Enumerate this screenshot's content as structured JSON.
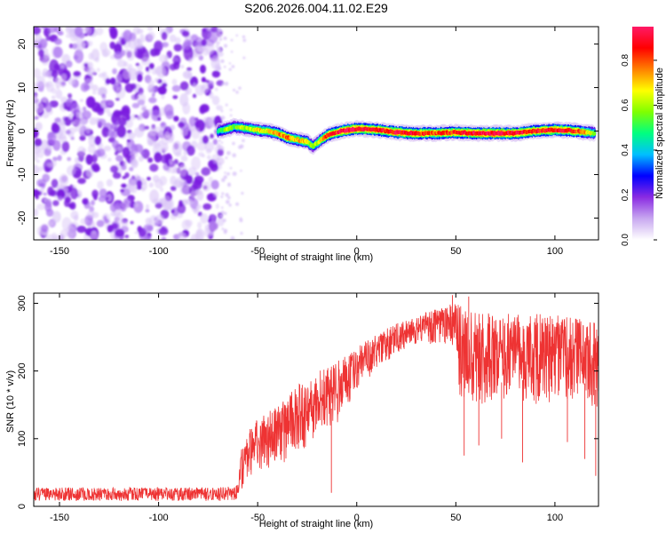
{
  "title": "S206.2026.004.11.02.E29",
  "chart_data": [
    {
      "type": "heatmap",
      "xlabel": "Height of straight line (km)",
      "ylabel": "Frequency (Hz)",
      "xlim": [
        -163,
        122
      ],
      "ylim": [
        -25,
        24
      ],
      "xticks": [
        -150,
        -100,
        -50,
        0,
        50,
        100
      ],
      "yticks": [
        -20,
        -10,
        0,
        10,
        20
      ],
      "noise_region_x": [
        -163,
        -70
      ],
      "signal_track": {
        "x": [
          -70,
          -65,
          -62,
          -58,
          -54,
          -50,
          -45,
          -40,
          -35,
          -30,
          -25,
          -22,
          -18,
          -15,
          -12,
          -8,
          -4,
          0,
          10,
          20,
          30,
          40,
          50,
          60,
          70,
          80,
          90,
          100,
          110,
          120
        ],
        "freq": [
          0,
          0.5,
          1.0,
          0.8,
          0.5,
          0.2,
          0,
          -0.5,
          -1.5,
          -2.0,
          -2.5,
          -3.5,
          -2.0,
          -1.0,
          -0.5,
          0,
          0.3,
          0.5,
          0.3,
          -0.3,
          -0.5,
          -0.5,
          -0.3,
          -0.5,
          -0.5,
          -0.5,
          0,
          0.3,
          0,
          -0.5
        ],
        "amplitude": [
          0.45,
          0.6,
          0.55,
          0.6,
          0.6,
          0.7,
          0.65,
          0.75,
          0.8,
          0.7,
          0.7,
          0.55,
          0.7,
          0.85,
          0.8,
          0.9,
          0.95,
          0.9,
          0.85,
          0.9,
          0.85,
          0.8,
          0.85,
          0.9,
          0.95,
          0.9,
          0.85,
          0.9,
          0.85,
          0.6
        ]
      },
      "colorbar": {
        "label": "Normalized spectral amplitude",
        "range": [
          0,
          0.95
        ],
        "ticks": [
          0.0,
          0.2,
          0.4,
          0.6,
          0.8
        ],
        "tick_labels": [
          "0.0",
          "0.2",
          "0.4",
          "0.6",
          "0.8"
        ],
        "colors": [
          "#ffffff",
          "#c8a8f0",
          "#8a2be2",
          "#0000ff",
          "#00bfff",
          "#00ff80",
          "#80ff00",
          "#ffff00",
          "#ff8000",
          "#ff0000",
          "#ff1a66"
        ]
      }
    },
    {
      "type": "line",
      "xlabel": "Height of straight line (km)",
      "ylabel": "SNR (10 * v/v)",
      "xlim": [
        -163,
        122
      ],
      "ylim": [
        0,
        315
      ],
      "xticks": [
        -150,
        -100,
        -50,
        0,
        50,
        100
      ],
      "yticks": [
        0,
        100,
        200,
        300
      ],
      "color": "#ee3333",
      "envelope": {
        "x": [
          -163,
          -150,
          -100,
          -70,
          -60,
          -58,
          -55,
          -50,
          -40,
          -30,
          -20,
          -10,
          0,
          10,
          20,
          30,
          40,
          45,
          50,
          52,
          60,
          70,
          80,
          90,
          100,
          110,
          122
        ],
        "low": [
          8,
          8,
          8,
          8,
          8,
          25,
          40,
          50,
          60,
          75,
          100,
          120,
          170,
          200,
          225,
          240,
          240,
          235,
          240,
          160,
          150,
          150,
          160,
          150,
          150,
          160,
          140
        ],
        "high": [
          28,
          28,
          28,
          28,
          32,
          90,
          110,
          130,
          150,
          180,
          200,
          215,
          235,
          255,
          270,
          280,
          295,
          300,
          300,
          300,
          290,
          285,
          285,
          285,
          285,
          280,
          270
        ]
      },
      "spikes": [
        {
          "x": -12.8,
          "y": 20
        },
        {
          "x": 54.2,
          "y": 75
        },
        {
          "x": 61.6,
          "y": 90
        },
        {
          "x": 73.1,
          "y": 100
        },
        {
          "x": 83.7,
          "y": 65
        },
        {
          "x": 106.3,
          "y": 95
        },
        {
          "x": 115.1,
          "y": 70
        },
        {
          "x": 120.6,
          "y": 45
        },
        {
          "x": 48.3,
          "y": 312
        },
        {
          "x": 56.5,
          "y": 310
        }
      ]
    }
  ]
}
